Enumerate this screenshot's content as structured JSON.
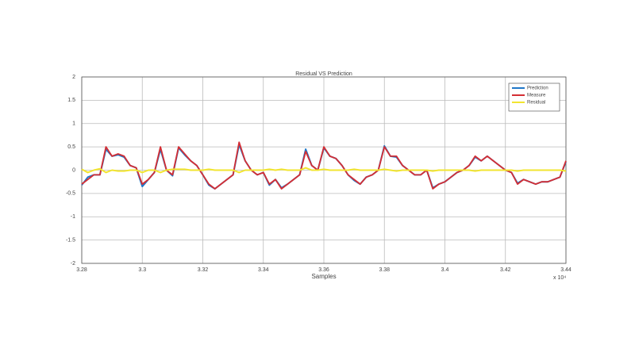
{
  "chart_data": {
    "type": "line",
    "title": "Residual VS Prediction",
    "x_label": "Samples",
    "x_multiplier": "x 10⁴",
    "x": [
      3.28,
      3.282,
      3.284,
      3.286,
      3.288,
      3.29,
      3.292,
      3.294,
      3.296,
      3.298,
      3.3,
      3.302,
      3.304,
      3.306,
      3.308,
      3.31,
      3.312,
      3.314,
      3.316,
      3.318,
      3.32,
      3.322,
      3.324,
      3.326,
      3.328,
      3.33,
      3.332,
      3.334,
      3.336,
      3.338,
      3.34,
      3.342,
      3.344,
      3.346,
      3.348,
      3.35,
      3.352,
      3.354,
      3.356,
      3.358,
      3.36,
      3.362,
      3.364,
      3.366,
      3.368,
      3.37,
      3.372,
      3.374,
      3.376,
      3.378,
      3.38,
      3.382,
      3.384,
      3.386,
      3.388,
      3.39,
      3.392,
      3.394,
      3.396,
      3.398,
      3.4,
      3.402,
      3.404,
      3.406,
      3.408,
      3.41,
      3.412,
      3.414,
      3.416,
      3.418,
      3.42,
      3.422,
      3.424,
      3.426,
      3.428,
      3.43,
      3.432,
      3.434,
      3.436,
      3.438,
      3.44
    ],
    "series": [
      {
        "name": "Prediction",
        "color": "#1f77c8",
        "values": [
          -0.32,
          -0.15,
          -0.1,
          -0.1,
          0.45,
          0.3,
          0.33,
          0.28,
          0.1,
          0.05,
          -0.35,
          -0.2,
          -0.05,
          0.45,
          0.0,
          -0.12,
          0.48,
          0.33,
          0.2,
          0.1,
          -0.1,
          -0.32,
          -0.4,
          -0.3,
          -0.2,
          -0.1,
          0.55,
          0.2,
          0.0,
          -0.1,
          -0.05,
          -0.32,
          -0.2,
          -0.38,
          -0.3,
          -0.2,
          -0.1,
          0.45,
          0.1,
          0.0,
          0.48,
          0.3,
          0.25,
          0.1,
          -0.1,
          -0.22,
          -0.3,
          -0.15,
          -0.1,
          0.0,
          0.52,
          0.3,
          0.28,
          0.1,
          0.0,
          -0.1,
          -0.1,
          0.0,
          -0.38,
          -0.3,
          -0.25,
          -0.15,
          -0.05,
          0.0,
          0.1,
          0.28,
          0.2,
          0.3,
          0.2,
          0.1,
          0.0,
          -0.05,
          -0.28,
          -0.2,
          -0.25,
          -0.3,
          -0.25,
          -0.25,
          -0.2,
          -0.15,
          0.18
        ]
      },
      {
        "name": "Measure",
        "color": "#d42e34",
        "values": [
          -0.3,
          -0.2,
          -0.1,
          -0.1,
          0.5,
          0.3,
          0.35,
          0.3,
          0.1,
          0.05,
          -0.3,
          -0.2,
          -0.05,
          0.5,
          0.0,
          -0.1,
          0.5,
          0.35,
          0.2,
          0.1,
          -0.1,
          -0.3,
          -0.4,
          -0.3,
          -0.2,
          -0.1,
          0.6,
          0.2,
          0.0,
          -0.1,
          -0.05,
          -0.3,
          -0.2,
          -0.4,
          -0.3,
          -0.2,
          -0.1,
          0.4,
          0.1,
          0.0,
          0.5,
          0.3,
          0.25,
          0.1,
          -0.1,
          -0.2,
          -0.3,
          -0.15,
          -0.1,
          0.0,
          0.5,
          0.3,
          0.3,
          0.1,
          0.0,
          -0.1,
          -0.1,
          0.0,
          -0.4,
          -0.3,
          -0.25,
          -0.15,
          -0.05,
          0.0,
          0.1,
          0.3,
          0.2,
          0.3,
          0.2,
          0.1,
          0.0,
          -0.05,
          -0.3,
          -0.2,
          -0.25,
          -0.3,
          -0.25,
          -0.25,
          -0.2,
          -0.15,
          0.2
        ]
      },
      {
        "name": "Residual",
        "color": "#f2e530",
        "values": [
          0.02,
          -0.05,
          0.0,
          0.03,
          -0.05,
          0.0,
          -0.02,
          -0.02,
          0.0,
          0.0,
          -0.05,
          0.0,
          0.0,
          -0.05,
          0.0,
          0.02,
          0.02,
          0.02,
          0.0,
          0.0,
          0.0,
          0.02,
          0.0,
          0.0,
          0.0,
          0.0,
          -0.05,
          0.0,
          0.0,
          0.0,
          0.0,
          0.02,
          0.0,
          0.02,
          0.0,
          0.0,
          0.0,
          0.05,
          0.0,
          0.0,
          0.02,
          0.0,
          0.0,
          0.0,
          0.0,
          0.02,
          0.0,
          0.0,
          0.0,
          0.0,
          0.02,
          0.0,
          -0.02,
          0.0,
          0.0,
          0.0,
          0.0,
          0.0,
          -0.02,
          0.0,
          0.0,
          0.0,
          0.0,
          0.0,
          0.0,
          -0.02,
          0.0,
          0.0,
          0.0,
          0.0,
          0.0,
          0.0,
          -0.02,
          0.0,
          0.0,
          0.0,
          0.0,
          0.0,
          0.0,
          0.0,
          -0.02
        ]
      }
    ],
    "xlim": [
      3.28,
      3.44
    ],
    "xticks": [
      3.28,
      3.3,
      3.32,
      3.34,
      3.36,
      3.38,
      3.4,
      3.42,
      3.44
    ],
    "ylim": [
      -2,
      2
    ],
    "yticks": [
      -2,
      -1.5,
      -1,
      -0.5,
      0,
      0.5,
      1,
      1.5,
      2
    ],
    "grid": true,
    "legend": "upper right"
  }
}
